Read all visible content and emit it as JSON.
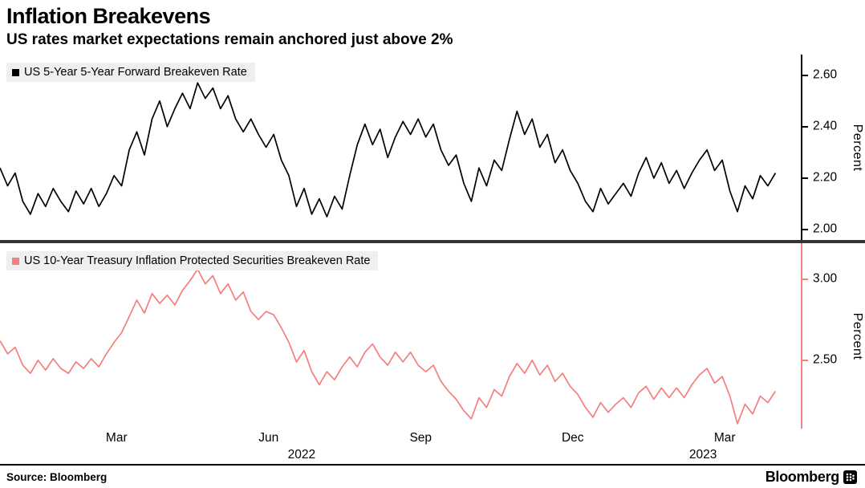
{
  "header": {
    "title": "Inflation Breakevens",
    "subtitle": "US rates market expectations remain anchored just above 2%"
  },
  "footer": {
    "source": "Source: Bloomberg",
    "brand": "Bloomberg"
  },
  "colors": {
    "top_line": "#000000",
    "bottom_line": "#f57e7e",
    "legend_bg": "#efefef",
    "divider": "#333333"
  },
  "x_axis": {
    "xlim": [
      -0.3,
      15.5
    ],
    "ticks": [
      {
        "m": 2,
        "label": "Mar"
      },
      {
        "m": 5,
        "label": "Jun"
      },
      {
        "m": 8,
        "label": "Sep"
      },
      {
        "m": 11,
        "label": "Dec"
      },
      {
        "m": 14,
        "label": "Mar"
      }
    ],
    "years": [
      {
        "m": 5.65,
        "label": "2022"
      },
      {
        "m": 13.57,
        "label": "2023"
      }
    ]
  },
  "chart_data": [
    {
      "type": "line",
      "series_label": "US 5-Year 5-Year Forward Breakeven Rate",
      "color": "#000000",
      "axis_color": "#000000",
      "ylabel": "Percent",
      "ylim": [
        1.96,
        2.68
      ],
      "xlim": [
        -0.3,
        15.5
      ],
      "yticks": [
        {
          "v": 2.0,
          "label": "2.00"
        },
        {
          "v": 2.2,
          "label": "2.20"
        },
        {
          "v": 2.4,
          "label": "2.40"
        },
        {
          "v": 2.6,
          "label": "2.60"
        }
      ],
      "x_start": -0.3,
      "x_step": 0.15,
      "x_unit": "months-from-Jan-2022",
      "values": [
        2.24,
        2.17,
        2.22,
        2.11,
        2.06,
        2.14,
        2.09,
        2.16,
        2.11,
        2.07,
        2.15,
        2.1,
        2.16,
        2.09,
        2.14,
        2.21,
        2.17,
        2.31,
        2.38,
        2.29,
        2.43,
        2.5,
        2.4,
        2.47,
        2.53,
        2.47,
        2.57,
        2.51,
        2.55,
        2.47,
        2.52,
        2.43,
        2.38,
        2.43,
        2.37,
        2.32,
        2.37,
        2.27,
        2.21,
        2.09,
        2.16,
        2.06,
        2.12,
        2.05,
        2.13,
        2.08,
        2.21,
        2.33,
        2.41,
        2.33,
        2.39,
        2.28,
        2.36,
        2.42,
        2.37,
        2.43,
        2.36,
        2.41,
        2.31,
        2.25,
        2.29,
        2.18,
        2.11,
        2.24,
        2.17,
        2.27,
        2.23,
        2.35,
        2.46,
        2.37,
        2.43,
        2.32,
        2.37,
        2.26,
        2.31,
        2.23,
        2.18,
        2.11,
        2.07,
        2.16,
        2.1,
        2.14,
        2.18,
        2.13,
        2.22,
        2.28,
        2.2,
        2.26,
        2.18,
        2.23,
        2.16,
        2.22,
        2.27,
        2.31,
        2.23,
        2.27,
        2.15,
        2.07,
        2.17,
        2.12,
        2.21,
        2.17,
        2.22
      ]
    },
    {
      "type": "line",
      "series_label": "US 10-Year Treasury Inflation Protected Securities Breakeven Rate",
      "color": "#f57e7e",
      "axis_color": "#f57e7e",
      "ylabel": "Percent",
      "ylim": [
        2.08,
        3.22
      ],
      "xlim": [
        -0.3,
        15.5
      ],
      "yticks": [
        {
          "v": 2.5,
          "label": "2.50"
        },
        {
          "v": 3.0,
          "label": "3.00"
        }
      ],
      "x_start": -0.3,
      "x_step": 0.15,
      "x_unit": "months-from-Jan-2022",
      "values": [
        2.62,
        2.54,
        2.58,
        2.47,
        2.42,
        2.5,
        2.44,
        2.51,
        2.45,
        2.42,
        2.49,
        2.45,
        2.51,
        2.46,
        2.54,
        2.61,
        2.67,
        2.77,
        2.87,
        2.79,
        2.91,
        2.85,
        2.9,
        2.84,
        2.93,
        2.99,
        3.06,
        2.97,
        3.02,
        2.91,
        2.97,
        2.87,
        2.92,
        2.8,
        2.75,
        2.8,
        2.78,
        2.7,
        2.61,
        2.49,
        2.56,
        2.43,
        2.35,
        2.43,
        2.38,
        2.46,
        2.52,
        2.46,
        2.55,
        2.6,
        2.52,
        2.47,
        2.55,
        2.49,
        2.55,
        2.47,
        2.43,
        2.47,
        2.37,
        2.31,
        2.26,
        2.19,
        2.14,
        2.27,
        2.21,
        2.32,
        2.28,
        2.4,
        2.48,
        2.42,
        2.5,
        2.41,
        2.47,
        2.37,
        2.42,
        2.34,
        2.29,
        2.21,
        2.15,
        2.24,
        2.18,
        2.23,
        2.27,
        2.21,
        2.3,
        2.34,
        2.26,
        2.33,
        2.27,
        2.33,
        2.27,
        2.35,
        2.41,
        2.45,
        2.36,
        2.4,
        2.28,
        2.11,
        2.23,
        2.17,
        2.28,
        2.24,
        2.31
      ]
    }
  ]
}
